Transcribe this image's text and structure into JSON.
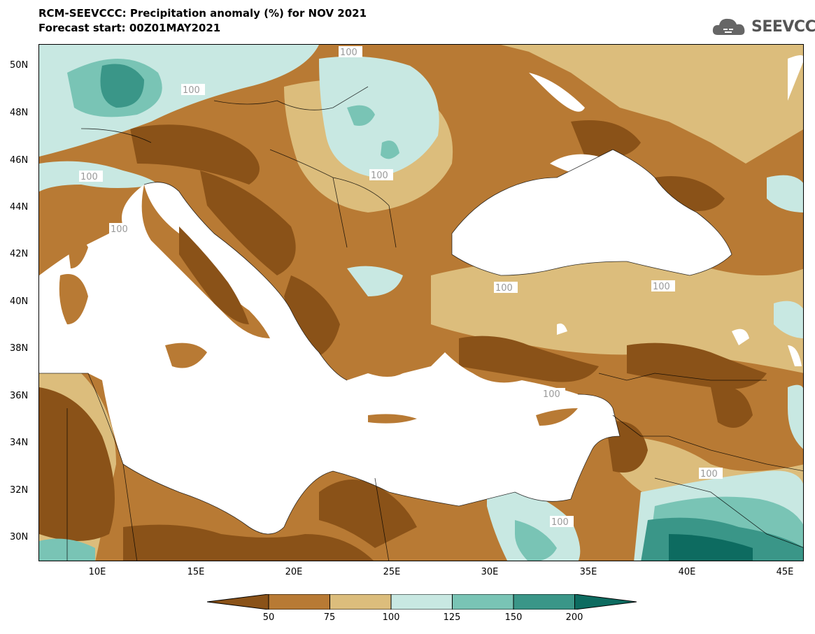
{
  "header": {
    "title": "RCM-SEEVCCC: Precipitation anomaly (%) for NOV 2021",
    "subtitle": "Forecast start: 00Z01MAY2021"
  },
  "logo": {
    "text": "SEEVCCC",
    "icon": "cloud-icon"
  },
  "axes": {
    "lat_ticks": [
      "50N",
      "48N",
      "46N",
      "44N",
      "42N",
      "40N",
      "38N",
      "36N",
      "34N",
      "32N",
      "30N"
    ],
    "lon_ticks": [
      "10E",
      "15E",
      "20E",
      "25E",
      "30E",
      "35E",
      "40E",
      "45E"
    ]
  },
  "contour_label": "100",
  "colorbar": {
    "labels": [
      "50",
      "75",
      "100",
      "125",
      "150",
      "200"
    ],
    "colors": [
      "#8a5218",
      "#b87a34",
      "#dcbd7c",
      "#c8e8e2",
      "#79c4b5",
      "#3a9688",
      "#0d6b60"
    ]
  },
  "colors": {
    "sea": "#ffffff",
    "land_dry": "#b87a34",
    "land_very_dry": "#8a5218",
    "land_near": "#dcbd7c",
    "land_wet": "#c8e8e2"
  }
}
